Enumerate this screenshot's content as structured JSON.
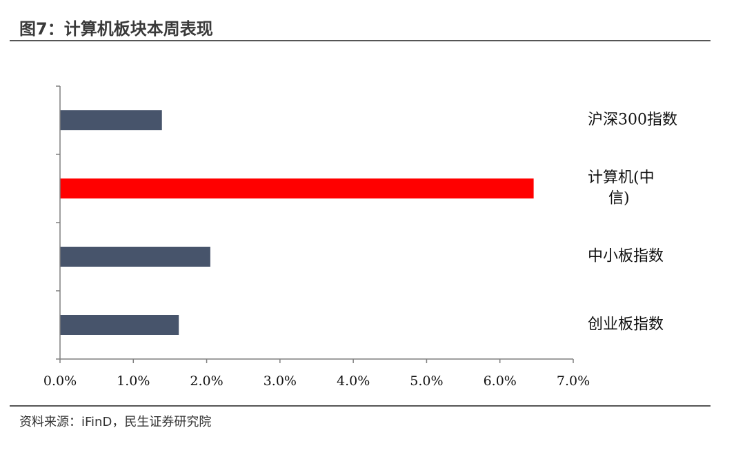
{
  "header": {
    "title": "图7：计算机板块本周表现"
  },
  "footer": {
    "source": "资料来源：iFinD，民生证券研究院"
  },
  "colors": {
    "default_bar": "#47546b",
    "highlight_bar": "#ff0000",
    "axis": "#7f7f7f"
  },
  "chart_data": {
    "type": "bar",
    "orientation": "horizontal",
    "title": "",
    "xlabel": "",
    "ylabel": "",
    "categories": [
      "沪深300指数",
      "计算机(中信)",
      "中小板指数",
      "创业板指数"
    ],
    "category_label_lines": [
      [
        "沪深300指数"
      ],
      [
        "计算机(中",
        "信)"
      ],
      [
        "中小板指数"
      ],
      [
        "创业板指数"
      ]
    ],
    "values": [
      1.39,
      6.46,
      2.05,
      1.62
    ],
    "value_unit": "%",
    "xlim": [
      0,
      7
    ],
    "x_ticks": [
      "0.0%",
      "1.0%",
      "2.0%",
      "3.0%",
      "4.0%",
      "5.0%",
      "6.0%",
      "7.0%"
    ],
    "highlight_index": 1,
    "grid": false,
    "legend": "none"
  }
}
